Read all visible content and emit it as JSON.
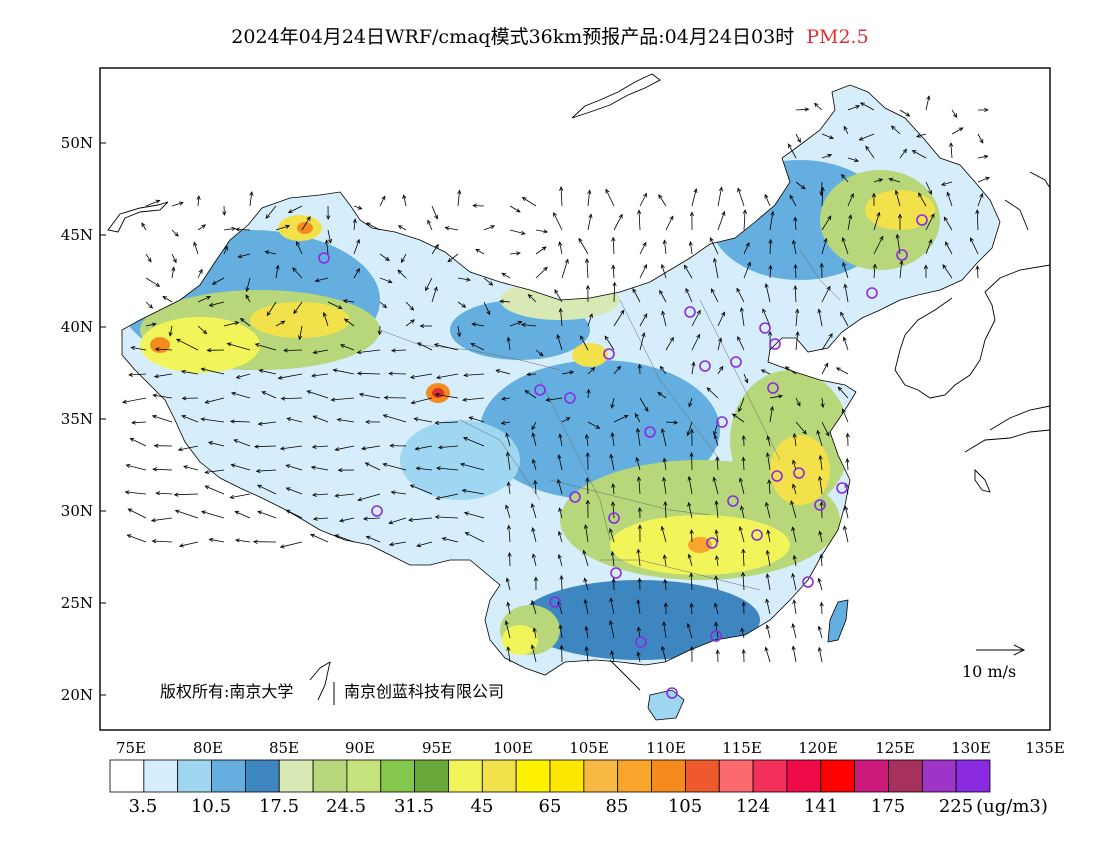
{
  "title": {
    "main": "2024年04月24日WRF/cmaq模式36km预报产品:04月24日03时",
    "variable": "PM2.5",
    "variable_color": "#e03030"
  },
  "map": {
    "lat_labels": [
      "50N",
      "45N",
      "40N",
      "35N",
      "30N",
      "25N",
      "20N"
    ],
    "lon_labels": [
      "75E",
      "80E",
      "85E",
      "90E",
      "95E",
      "100E",
      "105E",
      "110E",
      "115E",
      "120E",
      "125E",
      "130E",
      "135E"
    ],
    "copyright_text": "版权所有:南京大学",
    "copyright_text2": "南京创蓝科技有限公司",
    "wind_ref_label": "10 m/s",
    "colors": {
      "light_blue": "#bfe3f7",
      "mid_blue": "#7fbfe6",
      "dark_blue": "#4a90c8",
      "pale_green": "#d7e8b5",
      "green": "#a9cf6e",
      "yellow": "#f5ec55",
      "orange": "#f5a623",
      "red": "#e0302c"
    }
  },
  "legend": {
    "colors": [
      "#ffffff",
      "#d6eefb",
      "#9fd6f2",
      "#64aee0",
      "#3e86c0",
      "#d9e9b6",
      "#b8d77a",
      "#c7e37e",
      "#86c84e",
      "#6aa83a",
      "#f1f55a",
      "#f2e14a",
      "#fff200",
      "#fde600",
      "#f7b844",
      "#f7a52b",
      "#f58a1e",
      "#ee5a2c",
      "#fb6a6e",
      "#f2305a",
      "#ef0a4a",
      "#fe0000",
      "#cc1a7a",
      "#a8305f",
      "#9c35c8",
      "#8a2be2"
    ],
    "tick_labels": [
      "3.5",
      "10.5",
      "17.5",
      "24.5",
      "31.5",
      "45",
      "65",
      "85",
      "105",
      "124",
      "141",
      "175",
      "225"
    ],
    "unit": "(ug/m3)"
  }
}
